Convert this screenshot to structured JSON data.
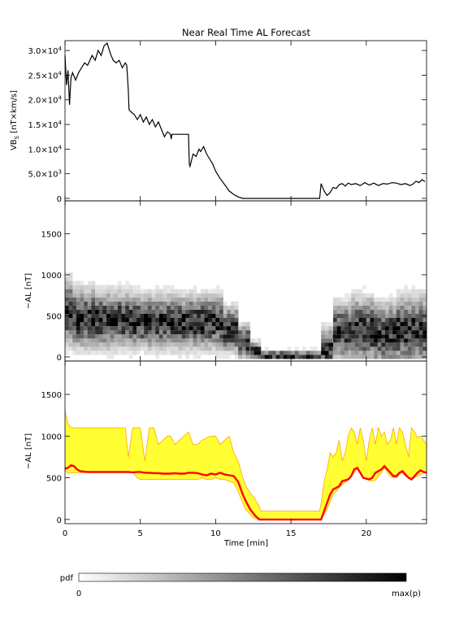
{
  "title": "Near Real Time AL Forecast",
  "colors": {
    "axis": "#000000",
    "vbs_line": "#000000",
    "band_fill": "#ffff33",
    "band_edge": "#ffa500",
    "al_line": "#ff0000",
    "pdf_low": "#ffffff",
    "pdf_high": "#000000"
  },
  "colorbar": {
    "label": "pdf",
    "min_label": "0",
    "max_label": "max(p)"
  },
  "chart_data": [
    {
      "type": "line",
      "id": "vbs",
      "ylabel": "VB",
      "ylabel_sub": "S",
      "ylabel_rest": " [nT×km/s]",
      "xlim": [
        0,
        24
      ],
      "ylim": [
        -500,
        32000
      ],
      "yticks": [
        {
          "value": 0,
          "mant": "0",
          "exp": ""
        },
        {
          "value": 5000,
          "mant": "5.0×10",
          "exp": "3"
        },
        {
          "value": 10000,
          "mant": "1.0×10",
          "exp": "4"
        },
        {
          "value": 15000,
          "mant": "1.5×10",
          "exp": "4"
        },
        {
          "value": 20000,
          "mant": "2.0×10",
          "exp": "4"
        },
        {
          "value": 25000,
          "mant": "2.5×10",
          "exp": "4"
        },
        {
          "value": 30000,
          "mant": "3.0×10",
          "exp": "4"
        }
      ],
      "series": [
        {
          "x": [
            0,
            0.1,
            0.2,
            0.3,
            0.35,
            0.4,
            0.5,
            0.7,
            0.9,
            1.1,
            1.3,
            1.5,
            1.8,
            2.0,
            2.2,
            2.4,
            2.6,
            2.8,
            3.0,
            3.2,
            3.4,
            3.6,
            3.8,
            4.0,
            4.1,
            4.2,
            4.25,
            4.4,
            4.6,
            4.8,
            5.0,
            5.2,
            5.4,
            5.6,
            5.8,
            6.0,
            6.2,
            6.4,
            6.6,
            6.8,
            7.0,
            7.05,
            7.1,
            7.5,
            8.0,
            8.2,
            8.25,
            8.3,
            8.5,
            8.7,
            8.9,
            9.0,
            9.2,
            9.4,
            9.6,
            9.8,
            10.0,
            10.3,
            10.6,
            10.9,
            11.2,
            11.5,
            11.8,
            12.0,
            12.5,
            13.0,
            14.0,
            15.0,
            16.0,
            16.9,
            17.0,
            17.2,
            17.4,
            17.6,
            17.8,
            18.0,
            18.2,
            18.4,
            18.6,
            18.8,
            19.0,
            19.3,
            19.6,
            19.9,
            20.2,
            20.5,
            20.8,
            21.1,
            21.4,
            21.7,
            22.0,
            22.3,
            22.6,
            22.9,
            23.1,
            23.3,
            23.5,
            23.7,
            23.9
          ],
          "y": [
            29000,
            23000,
            26000,
            19000,
            22000,
            24500,
            25500,
            24000,
            25500,
            26500,
            27500,
            27000,
            29000,
            28000,
            30000,
            29000,
            31000,
            31500,
            29500,
            28000,
            27500,
            28000,
            26500,
            27500,
            27000,
            22000,
            18000,
            17500,
            17000,
            16000,
            17000,
            15500,
            16500,
            15000,
            16000,
            14500,
            15500,
            14000,
            12500,
            13500,
            13000,
            12000,
            13000,
            13000,
            13000,
            13000,
            7000,
            6500,
            9000,
            8500,
            10000,
            9500,
            10500,
            9000,
            8000,
            7000,
            5500,
            4000,
            2800,
            1500,
            800,
            300,
            0,
            0,
            0,
            0,
            0,
            0,
            0,
            0,
            3000,
            1500,
            600,
            1200,
            2200,
            2000,
            2800,
            3000,
            2500,
            3100,
            2800,
            3000,
            2600,
            3200,
            2700,
            3100,
            2600,
            3000,
            2900,
            3200,
            3100,
            2800,
            3000,
            2600,
            2900,
            3500,
            3200,
            3800,
            3400
          ]
        }
      ]
    },
    {
      "type": "heatmap",
      "id": "pdf",
      "ylabel": "−AL [nT]",
      "xlim": [
        0,
        24
      ],
      "ylim": [
        -50,
        1900
      ],
      "yticks": [
        0,
        500,
        1000,
        1500
      ],
      "y_bins": [
        0,
        50,
        100,
        150,
        200,
        250,
        300,
        350,
        400,
        450,
        500,
        550,
        600,
        650,
        700,
        750,
        800,
        850,
        900,
        950,
        1000,
        1050,
        1100
      ],
      "columns": [
        {
          "x_start": 0,
          "x_end": 0.5,
          "center": 550,
          "spread": 230,
          "max": 1100
        },
        {
          "x_start": 0.5,
          "x_end": 2.0,
          "center": 470,
          "spread": 210,
          "max": 1100
        },
        {
          "x_start": 2.0,
          "x_end": 4.5,
          "center": 450,
          "spread": 200,
          "max": 1100
        },
        {
          "x_start": 4.5,
          "x_end": 7.0,
          "center": 430,
          "spread": 190,
          "max": 1100
        },
        {
          "x_start": 7.0,
          "x_end": 10.5,
          "center": 420,
          "spread": 190,
          "max": 850
        },
        {
          "x_start": 10.5,
          "x_end": 11.5,
          "center": 330,
          "spread": 160,
          "max": 800
        },
        {
          "x_start": 11.5,
          "x_end": 12.3,
          "center": 180,
          "spread": 120,
          "max": 650
        },
        {
          "x_start": 12.3,
          "x_end": 13.0,
          "center": 60,
          "spread": 70,
          "max": 400
        },
        {
          "x_start": 13.0,
          "x_end": 17.0,
          "center": 10,
          "spread": 40,
          "max": 150
        },
        {
          "x_start": 17.0,
          "x_end": 17.8,
          "center": 100,
          "spread": 150,
          "max": 750
        },
        {
          "x_start": 17.8,
          "x_end": 19.0,
          "center": 300,
          "spread": 200,
          "max": 900
        },
        {
          "x_start": 19.0,
          "x_end": 20.5,
          "center": 320,
          "spread": 230,
          "max": 1100
        },
        {
          "x_start": 20.5,
          "x_end": 22.0,
          "center": 280,
          "spread": 220,
          "max": 1100
        },
        {
          "x_start": 22.0,
          "x_end": 24.0,
          "center": 320,
          "spread": 240,
          "max": 1100
        }
      ]
    },
    {
      "type": "area",
      "id": "al_forecast",
      "ylabel": "−AL [nT]",
      "xlabel": "Time [min]",
      "xlim": [
        0,
        24
      ],
      "ylim": [
        -50,
        1900
      ],
      "xticks": [
        0,
        5,
        10,
        15,
        20
      ],
      "yticks": [
        0,
        500,
        1000,
        1500
      ],
      "x": [
        0,
        0.2,
        0.4,
        0.6,
        0.8,
        1.0,
        1.5,
        2.0,
        2.5,
        3.0,
        3.5,
        3.8,
        4.0,
        4.2,
        4.5,
        4.8,
        5.0,
        5.3,
        5.6,
        5.9,
        6.2,
        6.5,
        6.8,
        7.0,
        7.3,
        7.6,
        7.9,
        8.2,
        8.5,
        8.8,
        9.1,
        9.4,
        9.7,
        10.0,
        10.3,
        10.6,
        10.9,
        11.2,
        11.5,
        11.8,
        12.0,
        12.3,
        12.6,
        12.9,
        13.0,
        14.0,
        15.0,
        16.0,
        16.9,
        17.0,
        17.2,
        17.4,
        17.6,
        17.8,
        18.0,
        18.2,
        18.4,
        18.6,
        18.8,
        19.0,
        19.2,
        19.4,
        19.6,
        19.8,
        20.0,
        20.2,
        20.4,
        20.6,
        20.8,
        21.0,
        21.2,
        21.4,
        21.6,
        21.8,
        22.0,
        22.2,
        22.4,
        22.6,
        22.8,
        23.0,
        23.2,
        23.4,
        23.6,
        23.8,
        24.0
      ],
      "upper": [
        1300,
        1150,
        1100,
        1100,
        1100,
        1100,
        1100,
        1100,
        1100,
        1100,
        1100,
        1100,
        1100,
        750,
        1100,
        1100,
        1100,
        700,
        1100,
        1100,
        900,
        950,
        1000,
        1000,
        900,
        950,
        1000,
        1050,
        900,
        900,
        950,
        980,
        1000,
        1000,
        900,
        950,
        1000,
        800,
        700,
        500,
        400,
        320,
        250,
        150,
        100,
        100,
        100,
        100,
        100,
        200,
        450,
        600,
        800,
        750,
        800,
        950,
        700,
        800,
        1000,
        1100,
        1050,
        900,
        1100,
        950,
        700,
        950,
        1100,
        900,
        1100,
        1000,
        1050,
        900,
        950,
        1100,
        900,
        1100,
        1050,
        900,
        750,
        1100,
        1050,
        980,
        1000,
        950,
        900
      ],
      "lower": [
        600,
        550,
        560,
        560,
        560,
        560,
        560,
        560,
        560,
        560,
        560,
        560,
        560,
        560,
        560,
        500,
        480,
        480,
        480,
        480,
        480,
        480,
        480,
        480,
        480,
        480,
        480,
        480,
        480,
        480,
        500,
        480,
        480,
        500,
        480,
        480,
        460,
        440,
        330,
        200,
        120,
        60,
        10,
        0,
        0,
        0,
        0,
        0,
        0,
        0,
        60,
        120,
        220,
        300,
        340,
        380,
        420,
        450,
        470,
        520,
        560,
        600,
        560,
        500,
        480,
        470,
        460,
        470,
        520,
        560,
        620,
        560,
        520,
        500,
        500,
        540,
        560,
        520,
        500,
        480,
        500,
        520,
        540,
        560,
        560
      ],
      "series": [
        {
          "name": "",
          "values": [
            610,
            620,
            650,
            640,
            600,
            580,
            570,
            570,
            570,
            570,
            570,
            570,
            570,
            570,
            565,
            570,
            570,
            560,
            560,
            555,
            555,
            550,
            550,
            550,
            555,
            550,
            550,
            560,
            560,
            555,
            540,
            530,
            550,
            540,
            560,
            540,
            530,
            520,
            450,
            300,
            220,
            120,
            50,
            0,
            0,
            0,
            0,
            0,
            0,
            0,
            100,
            200,
            300,
            360,
            380,
            400,
            460,
            470,
            480,
            520,
            600,
            620,
            560,
            500,
            490,
            480,
            500,
            560,
            580,
            600,
            640,
            600,
            560,
            520,
            520,
            560,
            580,
            540,
            500,
            480,
            520,
            560,
            590,
            570,
            560
          ]
        }
      ]
    }
  ]
}
